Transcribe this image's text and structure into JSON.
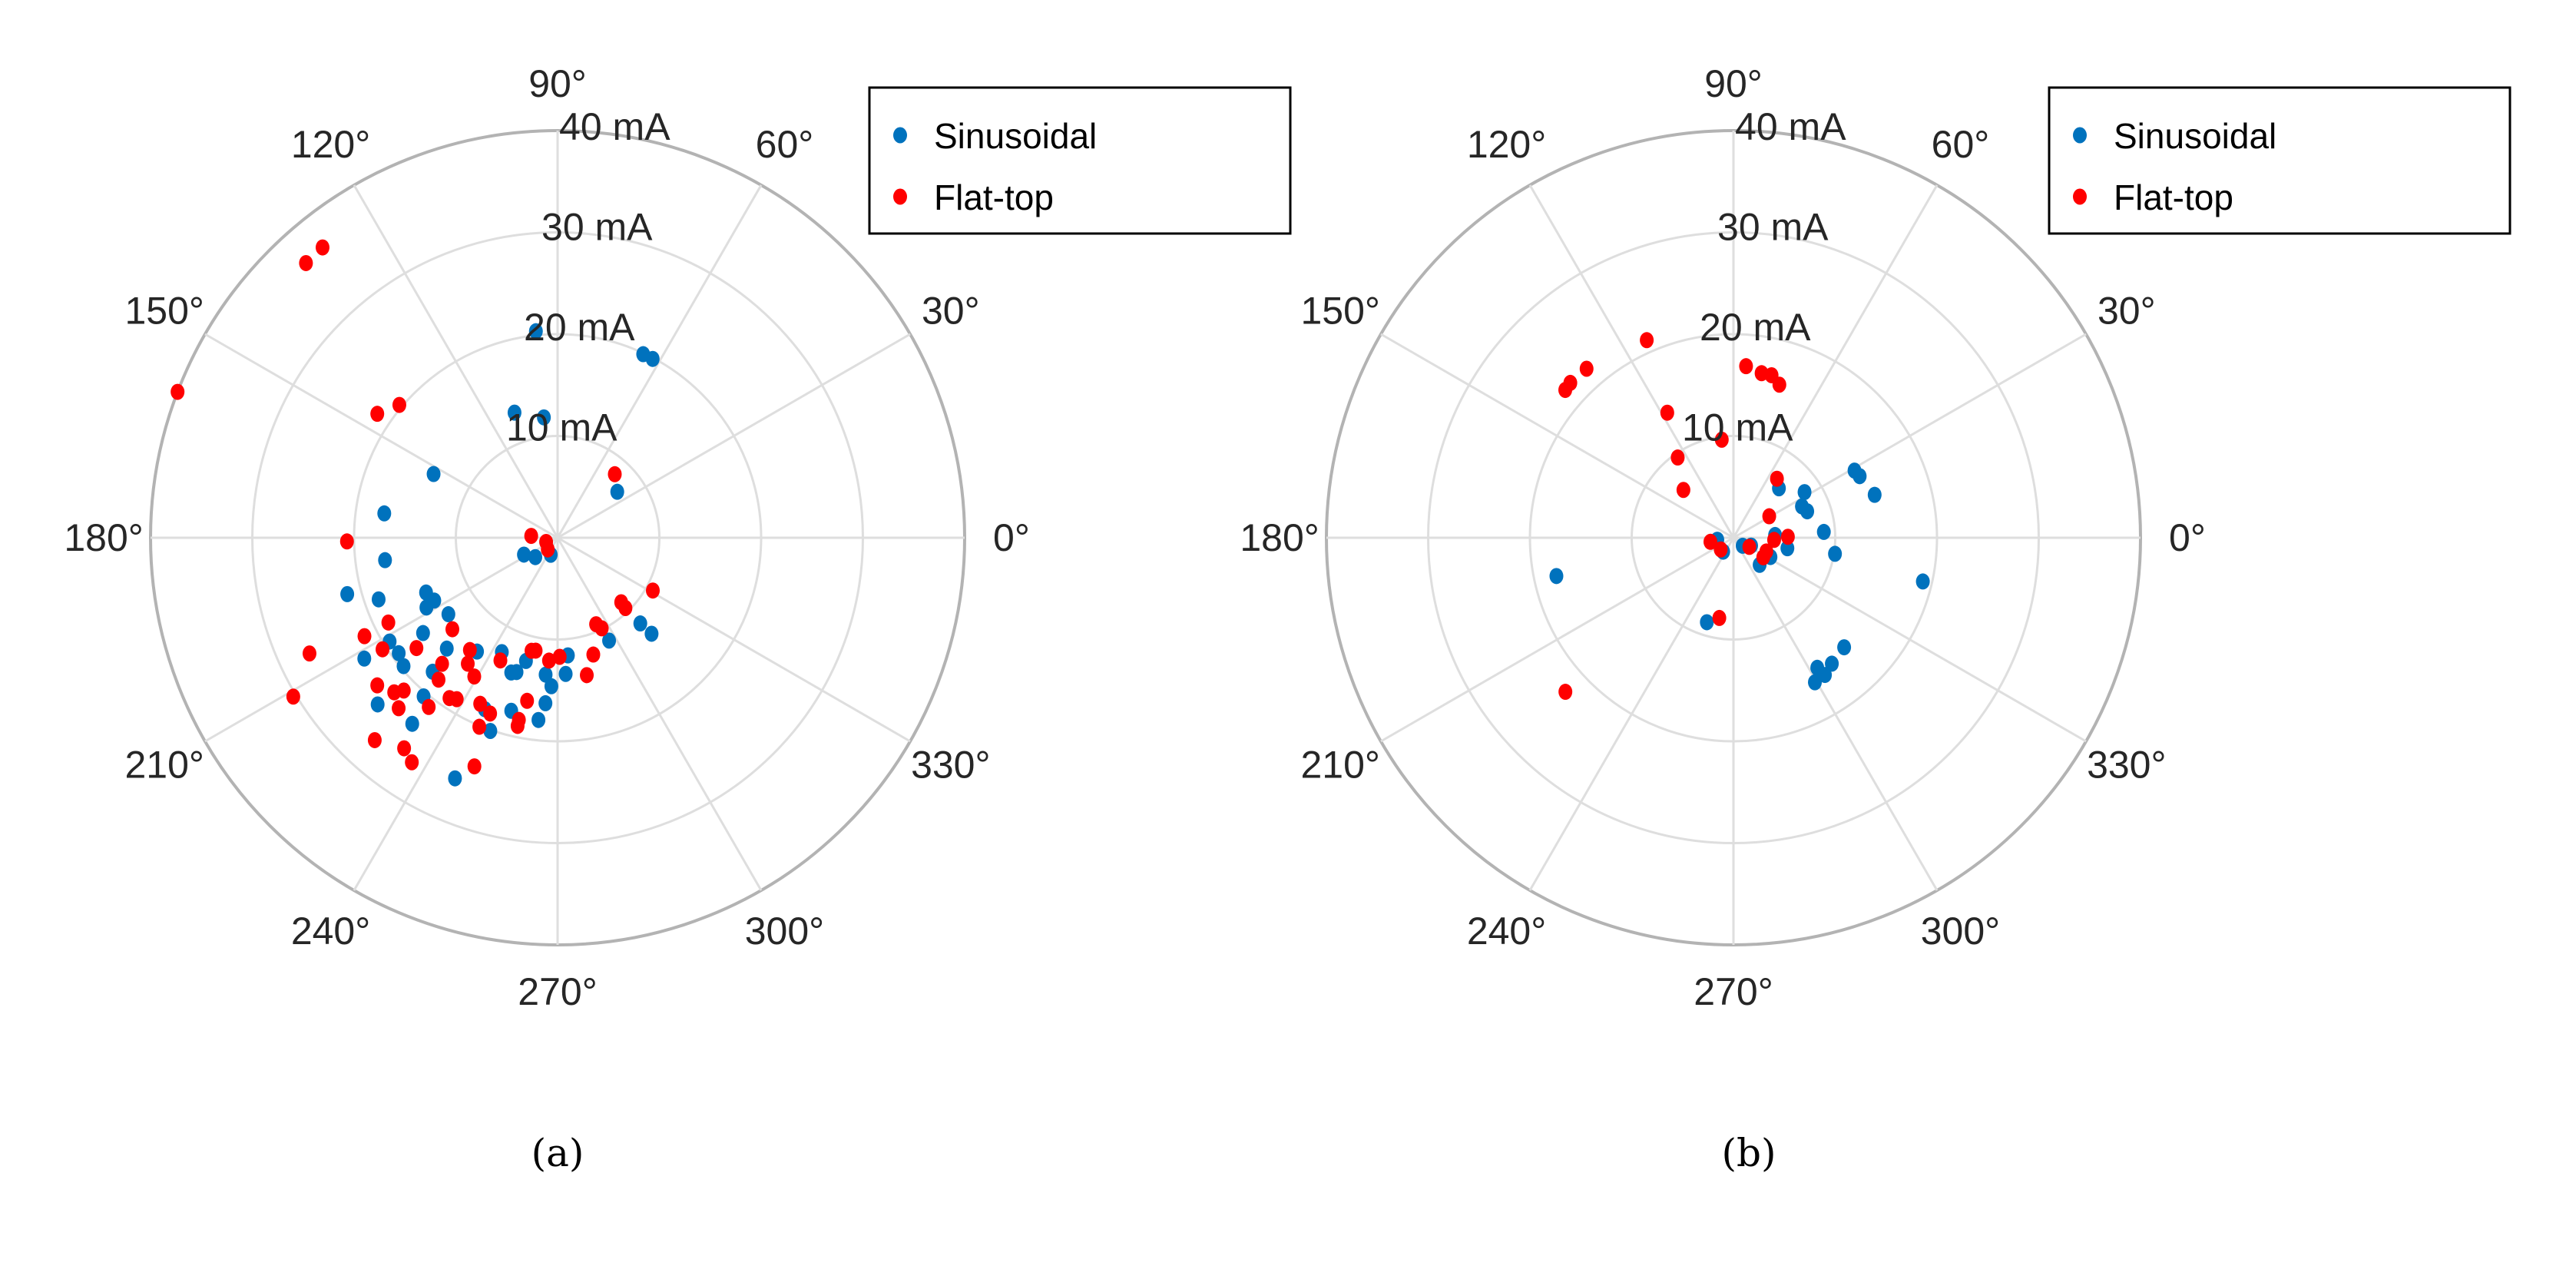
{
  "chart_data": [
    {
      "type": "scatter",
      "coordinate_system": "polar",
      "caption": "(a)",
      "theta_unit": "degrees",
      "r_unit": "mA",
      "rlim": [
        0,
        40
      ],
      "r_ticks": [
        10,
        20,
        30,
        40
      ],
      "r_tick_labels": [
        "10 mA",
        "20 mA",
        "30 mA",
        "40 mA"
      ],
      "theta_ticks": [
        0,
        30,
        60,
        90,
        120,
        150,
        180,
        210,
        240,
        270,
        300,
        330
      ],
      "theta_tick_labels": [
        "0°",
        "30°",
        "60°",
        "90°",
        "120°",
        "150°",
        "180°",
        "210°",
        "240°",
        "270°",
        "300°",
        "330°"
      ],
      "grid": true,
      "legend_position": "top-right",
      "series": [
        {
          "name": "Sinusoidal",
          "color": "#0072BD",
          "points_theta_r": [
            [
              96,
              20.4
            ],
            [
              65,
              19.9
            ],
            [
              62,
              19.9
            ],
            [
              109,
              13
            ],
            [
              96.5,
              11.9
            ],
            [
              152.8,
              13.7
            ],
            [
              37.6,
              7.4
            ],
            [
              172,
              17.2
            ],
            [
              187.4,
              17.1
            ],
            [
              195,
              21.4
            ],
            [
              199,
              18.6
            ],
            [
              206.6,
              3.7
            ],
            [
              221,
              2.9
            ],
            [
              248,
              1.8
            ],
            [
              202.6,
              14
            ],
            [
              207,
              13.6
            ],
            [
              208,
              14.6
            ],
            [
              215,
              13.1
            ],
            [
              225,
              15.4
            ],
            [
              215.3,
              16.2
            ],
            [
              211.7,
              19.4
            ],
            [
              216,
              19.3
            ],
            [
              219.8,
              19.7
            ],
            [
              212,
              22.4
            ],
            [
              227,
              18
            ],
            [
              229.8,
              20.4
            ],
            [
              222.8,
              24.1
            ],
            [
              232,
              23.2
            ],
            [
              246.9,
              25.7
            ],
            [
              250.8,
              20.1
            ],
            [
              247,
              18.3
            ],
            [
              255,
              17.6
            ],
            [
              264,
              18
            ],
            [
              265.8,
              16.3
            ],
            [
              267.6,
              14.6
            ],
            [
              265,
              13.5
            ],
            [
              273.4,
              13.4
            ],
            [
              275,
              11.6
            ],
            [
              255.6,
              12.5
            ],
            [
              251,
              14
            ],
            [
              253,
              13.8
            ],
            [
              244,
              12.5
            ],
            [
              234.7,
              13.7
            ],
            [
              296.6,
              11.3
            ],
            [
              314,
              11.7
            ],
            [
              314.4,
              13.2
            ]
          ]
        },
        {
          "name": "Flat-top",
          "color": "#FF0000",
          "points_theta_r": [
            [
              129,
              36.7
            ],
            [
              132.5,
              36.6
            ],
            [
              159,
              40
            ],
            [
              145.5,
              21.5
            ],
            [
              140,
              20.3
            ],
            [
              48,
              8.4
            ],
            [
              181,
              20.7
            ],
            [
              176,
              2.6
            ],
            [
              200,
              1.2
            ],
            [
              230,
              1.5
            ],
            [
              331,
              10.7
            ],
            [
              314.6,
              8.9
            ],
            [
              314,
              9.6
            ],
            [
              294,
              9.3
            ],
            [
              296,
              9.9
            ],
            [
              287,
              12
            ],
            [
              282,
              13.8
            ],
            [
              271,
              11.7
            ],
            [
              266,
              12.1
            ],
            [
              257,
              11.4
            ],
            [
              259,
              11.3
            ],
            [
              259.4,
              16.3
            ],
            [
              258,
              18.3
            ],
            [
              258,
              18.9
            ],
            [
              245,
              13.3
            ],
            [
              249,
              18.5
            ],
            [
              245,
              18
            ],
            [
              247.5,
              20.1
            ],
            [
              250,
              23.9
            ],
            [
              239,
              15.9
            ],
            [
              234.5,
              15.2
            ],
            [
              232,
              14
            ],
            [
              221,
              13.7
            ],
            [
              238,
              18.7
            ],
            [
              236,
              19
            ],
            [
              230,
              18.2
            ],
            [
              227.5,
              16.8
            ],
            [
              232.7,
              20.9
            ],
            [
              218,
              17.6
            ],
            [
              224.8,
              21.3
            ],
            [
              223.4,
              22.1
            ],
            [
              227,
              22.9
            ],
            [
              219.3,
              22.9
            ],
            [
              212.5,
              20.4
            ],
            [
              207,
              21.3
            ],
            [
              206.6,
              18.6
            ],
            [
              205,
              26.9
            ],
            [
              211,
              30.3
            ],
            [
              227.9,
              26.8
            ],
            [
              233.9,
              25.6
            ],
            [
              237,
              26.3
            ]
          ]
        }
      ]
    },
    {
      "type": "scatter",
      "coordinate_system": "polar",
      "caption": "(b)",
      "theta_unit": "degrees",
      "r_unit": "mA",
      "rlim": [
        0,
        40
      ],
      "r_ticks": [
        10,
        20,
        30,
        40
      ],
      "r_tick_labels": [
        "10 mA",
        "20 mA",
        "30 mA",
        "40 mA"
      ],
      "theta_ticks": [
        0,
        30,
        60,
        90,
        120,
        150,
        180,
        210,
        240,
        270,
        300,
        330
      ],
      "theta_tick_labels": [
        "0°",
        "30°",
        "60°",
        "90°",
        "120°",
        "150°",
        "180°",
        "210°",
        "240°",
        "270°",
        "300°",
        "330°"
      ],
      "grid": true,
      "legend_position": "top-right",
      "series": [
        {
          "name": "Sinusoidal",
          "color": "#0072BD",
          "points_theta_r": [
            [
              29,
              13.6
            ],
            [
              26,
              13.8
            ],
            [
              16.9,
              14.5
            ],
            [
              32.7,
              8.3
            ],
            [
              24.6,
              7.4
            ],
            [
              19.7,
              7.7
            ],
            [
              47.4,
              6.6
            ],
            [
              3.7,
              8.9
            ],
            [
              351,
              10.1
            ],
            [
              347,
              19.1
            ],
            [
              3.8,
              4.1
            ],
            [
              349,
              5.4
            ],
            [
              332.5,
              4.1
            ],
            [
              314,
              3.7
            ],
            [
              336,
              1.9
            ],
            [
              319,
              1.2
            ],
            [
              187,
              1.6
            ],
            [
              233.5,
              1.7
            ],
            [
              192.2,
              17.8
            ],
            [
              252.5,
              8.7
            ],
            [
              315.3,
              15.3
            ],
            [
              308,
              15.7
            ],
            [
              302.8,
              15.2
            ],
            [
              303.7,
              16.2
            ],
            [
              299.4,
              16.3
            ]
          ]
        },
        {
          "name": "Flat-top",
          "color": "#FF0000",
          "points_theta_r": [
            [
              113.7,
              21.2
            ],
            [
              131,
              22
            ],
            [
              136.5,
              22.1
            ],
            [
              138.7,
              22
            ],
            [
              85.8,
              16.9
            ],
            [
              80.3,
              16.4
            ],
            [
              76.8,
              16.4
            ],
            [
              73.3,
              15.7
            ],
            [
              117.9,
              13.9
            ],
            [
              96.8,
              9.7
            ],
            [
              124.8,
              9.6
            ],
            [
              136.3,
              6.8
            ],
            [
              53.6,
              7.2
            ],
            [
              31,
              4.1
            ],
            [
              190,
              2.3
            ],
            [
              222.6,
              1.7
            ],
            [
              330,
              1.8
            ],
            [
              357,
              4
            ],
            [
              1,
              5.35
            ],
            [
              337.4,
              3.5
            ],
            [
              326.8,
              3.5
            ],
            [
              260,
              8
            ],
            [
              222.5,
              22.4
            ]
          ]
        }
      ]
    }
  ]
}
